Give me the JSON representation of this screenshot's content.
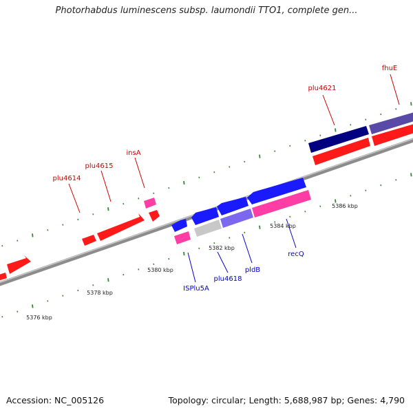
{
  "title": "Photorhabdus luminescens subsp. laumondii TTO1, complete gen...",
  "footer": {
    "accession": "Accession: NC_005126",
    "summary": "Topology: circular; Length: 5,688,987 bp; Genes: 4,790"
  },
  "colors": {
    "backbone": "#8c8c8c",
    "tick_marks": "#2e8b2e",
    "gene_red": "#ff1a1a",
    "gene_pink": "#ff3ea5",
    "gene_blue": "#1a1aff",
    "gene_navy": "#000080",
    "gene_slate": "#5a4aa8",
    "gene_purple": "#7b68ee",
    "gene_gray": "#c8c8c8",
    "label_red": "#cc0000",
    "label_blue": "#0000cc"
  },
  "scale_labels": [
    "5376 kbp",
    "5378 kbp",
    "5380 kbp",
    "5382 kbp",
    "5384 kbp",
    "5386 kbp"
  ],
  "gene_labels_outer": [
    "plu4614",
    "plu4615",
    "insA",
    "plu4621",
    "fhuE"
  ],
  "gene_labels_inner": [
    "ISPlu5A",
    "plu4618",
    "pldB",
    "recQ"
  ]
}
